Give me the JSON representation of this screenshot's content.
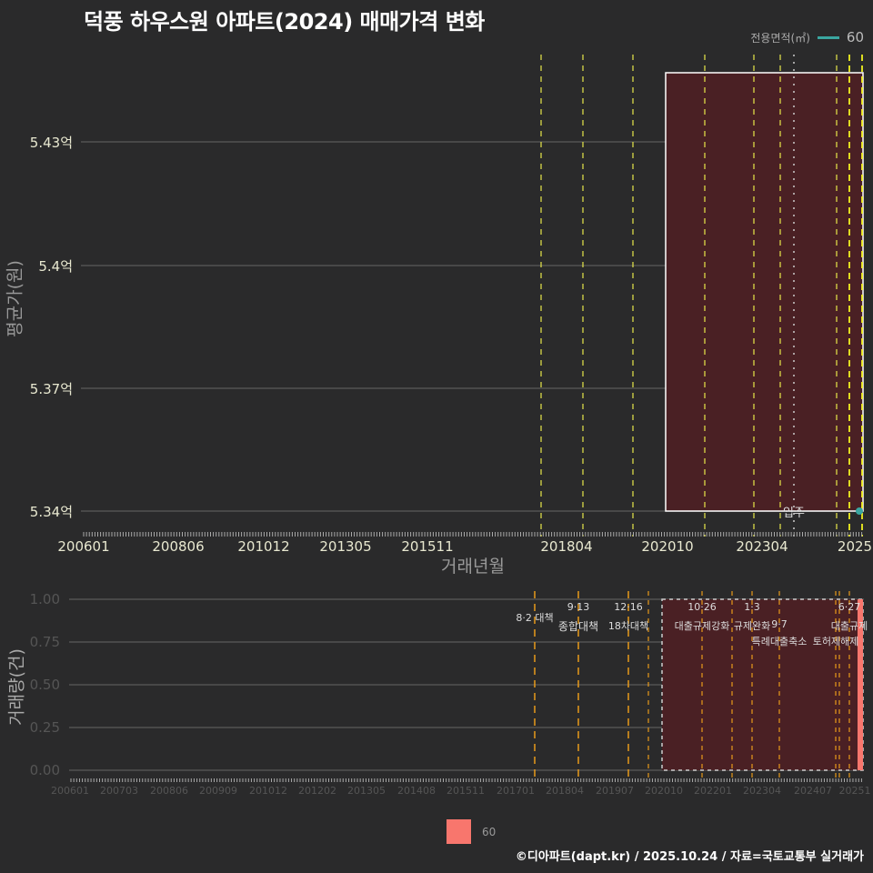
{
  "title": "덕풍 하우스원 아파트(2024) 매매가격 변화",
  "footer": "©디아파트(dapt.kr) / 2025.10.24 / 자료=국토교통부 실거래가",
  "legend_top": {
    "label": "전용면적(㎡)",
    "value": "60",
    "color": "#3aa6a0"
  },
  "legend_bottom": {
    "value": "60",
    "color": "#f8766d"
  },
  "top_chart": {
    "ylabel": "평균가(원)",
    "xlabel": "거래년월",
    "yticks": [
      "5.43억",
      "5.4억",
      "5.37억",
      "5.34억"
    ],
    "xticks": [
      "200601",
      "200806",
      "201012",
      "201305",
      "201511",
      "201804",
      "202010",
      "202304",
      "2025"
    ],
    "annotation": "입주"
  },
  "bottom_chart": {
    "ylabel": "거래량(건)",
    "yticks": [
      "1.00",
      "0.75",
      "0.50",
      "0.25",
      "0.00"
    ],
    "xticks": [
      "200601",
      "200703",
      "200806",
      "200909",
      "201012",
      "201202",
      "201305",
      "201408",
      "201511",
      "201701",
      "201804",
      "201907",
      "202010",
      "202201",
      "202304",
      "202407",
      "20251"
    ],
    "annotations": [
      {
        "date": "8·2 대책",
        "label": ""
      },
      {
        "date": "9·13",
        "label": "종합대책"
      },
      {
        "date": "12·16",
        "label": "18차대책"
      },
      {
        "date": "10·26",
        "label": "대출규제강화"
      },
      {
        "date": "1·3",
        "label": "규제완화"
      },
      {
        "date": "9·7",
        "label": "특례대출축소"
      },
      {
        "date": "",
        "label": "토허제해제"
      },
      {
        "date": "6·27",
        "label": "대출규제"
      }
    ]
  },
  "chart_data": [
    {
      "type": "line",
      "title": "덕풍 하우스원 아파트(2024) 매매가격 변화",
      "xlabel": "거래년월",
      "ylabel": "평균가(원)",
      "ylim": [
        5.34,
        5.445
      ],
      "yunit": "억",
      "series": [
        {
          "name": "60",
          "x": [
            "202510"
          ],
          "values": [
            5.34
          ]
        }
      ],
      "policy_lines": [
        "201708",
        "201809",
        "201912",
        "202110",
        "202301",
        "202309",
        "202502",
        "202506",
        "202509"
      ],
      "move_in_line": "202401",
      "highlight_range": [
        "202010",
        "202510"
      ],
      "legend": {
        "title": "전용면적(㎡)",
        "entries": [
          "60"
        ],
        "position": "top-right"
      }
    },
    {
      "type": "bar",
      "xlabel": "거래년월",
      "ylabel": "거래량(건)",
      "ylim": [
        0,
        1
      ],
      "yticks": [
        0,
        0.25,
        0.5,
        0.75,
        1.0
      ],
      "series": [
        {
          "name": "60",
          "x": [
            "202510"
          ],
          "values": [
            1
          ]
        }
      ],
      "legend": {
        "entries": [
          "60"
        ],
        "position": "bottom"
      }
    }
  ]
}
